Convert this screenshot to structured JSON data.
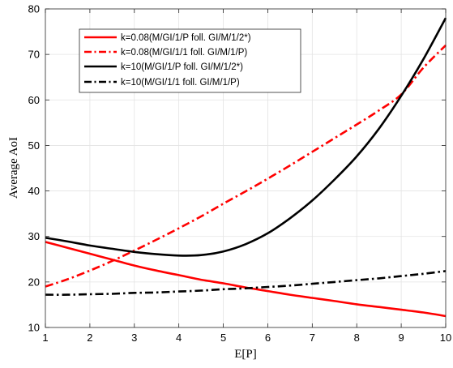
{
  "chart_data": {
    "type": "line",
    "title": "",
    "xlabel": "E[P]",
    "ylabel": "Average AoI",
    "xlim": [
      1,
      10
    ],
    "ylim": [
      10,
      80
    ],
    "xticks": [
      1,
      2,
      3,
      4,
      5,
      6,
      7,
      8,
      9,
      10
    ],
    "yticks": [
      10,
      20,
      30,
      40,
      50,
      60,
      70,
      80
    ],
    "grid": true,
    "box": true,
    "legend_position": "top-left",
    "x": [
      1,
      1.5,
      2,
      2.5,
      3,
      3.5,
      4,
      4.5,
      5,
      5.5,
      6,
      6.5,
      7,
      7.5,
      8,
      8.5,
      9,
      9.5,
      10
    ],
    "series": [
      {
        "name": "k=0.08(M/GI/1/P foll. GI/M/1/2*)",
        "color": "#ff0000",
        "dash": "solid",
        "values": [
          28.8,
          27.5,
          26.2,
          24.9,
          23.6,
          22.5,
          21.5,
          20.5,
          19.7,
          18.8,
          18.0,
          17.2,
          16.5,
          15.8,
          15.1,
          14.5,
          13.9,
          13.3,
          12.5
        ]
      },
      {
        "name": "k=0.08(M/GI/1/1 foll. GI/M/1/P)",
        "color": "#ff0000",
        "dash": "dashdot",
        "values": [
          19.0,
          20.6,
          22.5,
          24.6,
          26.9,
          29.3,
          31.8,
          34.4,
          37.2,
          39.9,
          42.7,
          45.6,
          48.6,
          51.6,
          54.6,
          57.7,
          61.2,
          67.1,
          72.0
        ]
      },
      {
        "name": "k=10(M/GI/1/P foll. GI/M/1/2*)",
        "color": "#000000",
        "dash": "solid",
        "values": [
          29.7,
          28.9,
          28.0,
          27.3,
          26.6,
          26.1,
          25.8,
          25.9,
          26.7,
          28.3,
          30.7,
          34.0,
          37.9,
          42.5,
          47.6,
          53.7,
          60.9,
          69.0,
          78.0
        ]
      },
      {
        "name": "k=10(M/GI/1/1 foll. GI/M/1/P)",
        "color": "#000000",
        "dash": "dashdot",
        "values": [
          17.2,
          17.2,
          17.3,
          17.4,
          17.6,
          17.7,
          17.9,
          18.1,
          18.4,
          18.6,
          18.9,
          19.2,
          19.6,
          20.0,
          20.4,
          20.8,
          21.3,
          21.8,
          22.4
        ]
      }
    ]
  }
}
